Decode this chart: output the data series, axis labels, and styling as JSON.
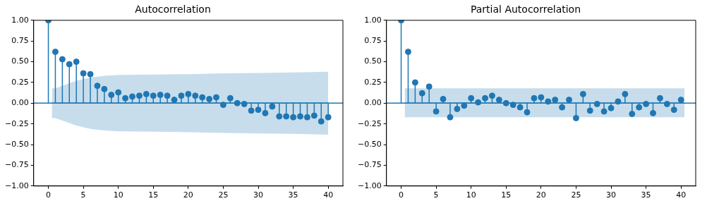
{
  "chart_data": [
    {
      "type": "lollipop",
      "title": "Autocorrelation",
      "xlim": [
        -2.1,
        42.1
      ],
      "ylim": [
        -1,
        1
      ],
      "xticks": [
        0,
        5,
        10,
        15,
        20,
        25,
        30,
        35,
        40
      ],
      "yticks": [
        {
          "value": -1,
          "label": "−1.00"
        },
        {
          "value": -0.75,
          "label": "−0.75"
        },
        {
          "value": -0.5,
          "label": "−0.50"
        },
        {
          "value": -0.25,
          "label": "−0.25"
        },
        {
          "value": 0,
          "label": "0.00"
        },
        {
          "value": 0.25,
          "label": "0.25"
        },
        {
          "value": 0.5,
          "label": "0.50"
        },
        {
          "value": 0.75,
          "label": "0.75"
        },
        {
          "value": 1,
          "label": "1.00"
        }
      ],
      "grid": false,
      "legend": false,
      "ref_lines": [
        {
          "axis": "y",
          "value": 0,
          "color": "#1f77b4"
        }
      ],
      "series": [
        {
          "type": "line",
          "marker": "none",
          "color": "#1f77b4",
          "x": [
            0.5,
            1,
            2,
            3,
            4,
            5,
            6,
            7,
            8,
            9,
            10,
            15,
            20,
            25,
            30,
            35,
            40
          ],
          "values": [
            0,
            0,
            0,
            0,
            0,
            0,
            0,
            0,
            0,
            0,
            0,
            0,
            0,
            0,
            0,
            0,
            0
          ],
          "upper": [
            0.18,
            0.18,
            0.21,
            0.24,
            0.27,
            0.29,
            0.31,
            0.32,
            0.33,
            0.335,
            0.34,
            0.345,
            0.35,
            0.36,
            0.365,
            0.37,
            0.38
          ],
          "lower": [
            -0.18,
            -0.18,
            -0.21,
            -0.24,
            -0.27,
            -0.29,
            -0.31,
            -0.32,
            -0.33,
            -0.335,
            -0.34,
            -0.345,
            -0.35,
            -0.36,
            -0.365,
            -0.37,
            -0.38
          ]
        },
        {
          "marker": "circle",
          "color": "#1f77b4",
          "x": [
            0,
            1,
            2,
            3,
            4,
            5,
            6,
            7,
            8,
            9,
            10,
            11,
            12,
            13,
            14,
            15,
            16,
            17,
            18,
            19,
            20,
            21,
            22,
            23,
            24,
            25,
            26,
            27,
            28,
            29,
            30,
            31,
            32,
            33,
            34,
            35,
            36,
            37,
            38,
            39,
            40
          ],
          "values": [
            1,
            0.62,
            0.53,
            0.47,
            0.5,
            0.36,
            0.35,
            0.21,
            0.17,
            0.1,
            0.13,
            0.06,
            0.08,
            0.09,
            0.11,
            0.09,
            0.1,
            0.09,
            0.04,
            0.09,
            0.11,
            0.09,
            0.07,
            0.05,
            0.07,
            -0.02,
            0.06,
            0,
            -0.01,
            -0.09,
            -0.08,
            -0.12,
            -0.04,
            -0.16,
            -0.16,
            -0.17,
            -0.16,
            -0.17,
            -0.15,
            -0.22,
            -0.17
          ]
        }
      ]
    },
    {
      "type": "lollipop",
      "title": "Partial Autocorrelation",
      "xlim": [
        -2.1,
        42.1
      ],
      "ylim": [
        -1,
        1
      ],
      "xticks": [
        0,
        5,
        10,
        15,
        20,
        25,
        30,
        35,
        40
      ],
      "yticks": [
        {
          "value": -1,
          "label": "−1.00"
        },
        {
          "value": -0.75,
          "label": "−0.75"
        },
        {
          "value": -0.5,
          "label": "−0.50"
        },
        {
          "value": -0.25,
          "label": "−0.25"
        },
        {
          "value": 0,
          "label": "0.00"
        },
        {
          "value": 0.25,
          "label": "0.25"
        },
        {
          "value": 0.5,
          "label": "0.50"
        },
        {
          "value": 0.75,
          "label": "0.75"
        },
        {
          "value": 1,
          "label": "1.00"
        }
      ],
      "grid": false,
      "legend": false,
      "ref_lines": [
        {
          "axis": "y",
          "value": 0,
          "color": "#1f77b4"
        }
      ],
      "series": [
        {
          "type": "line",
          "marker": "none",
          "color": "#1f77b4",
          "x": [
            0.5,
            40.5
          ],
          "values": [
            0,
            0
          ],
          "upper": [
            0.18,
            0.18
          ],
          "lower": [
            -0.17,
            -0.17
          ]
        },
        {
          "marker": "circle",
          "color": "#1f77b4",
          "x": [
            0,
            1,
            2,
            3,
            4,
            5,
            6,
            7,
            8,
            9,
            10,
            11,
            12,
            13,
            14,
            15,
            16,
            17,
            18,
            19,
            20,
            21,
            22,
            23,
            24,
            25,
            26,
            27,
            28,
            29,
            30,
            31,
            32,
            33,
            34,
            35,
            36,
            37,
            38,
            39,
            40
          ],
          "values": [
            1,
            0.62,
            0.25,
            0.12,
            0.2,
            -0.1,
            0.05,
            -0.17,
            -0.07,
            -0.03,
            0.06,
            0.01,
            0.06,
            0.09,
            0.04,
            0,
            -0.02,
            -0.05,
            -0.11,
            0.06,
            0.07,
            0.02,
            0.04,
            -0.05,
            0.04,
            -0.18,
            0.11,
            -0.09,
            -0.01,
            -0.1,
            -0.06,
            0.02,
            0.11,
            -0.13,
            -0.05,
            -0.01,
            -0.12,
            0.06,
            -0.01,
            -0.08,
            0.04
          ]
        }
      ]
    }
  ]
}
